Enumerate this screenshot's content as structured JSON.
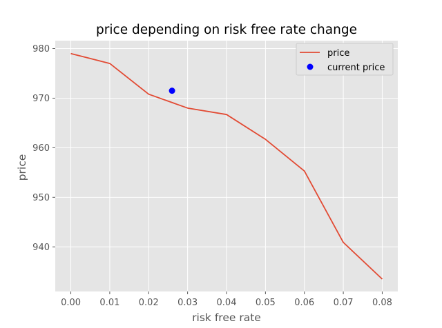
{
  "chart_data": {
    "type": "line",
    "title": "price depending on risk free rate change",
    "xlabel": "risk free rate",
    "ylabel": "price",
    "xlim": [
      -0.004,
      0.084
    ],
    "ylim": [
      931.0,
      981.6
    ],
    "xticks": [
      0.0,
      0.01,
      0.02,
      0.03,
      0.04,
      0.05,
      0.06,
      0.07,
      0.08
    ],
    "xtick_labels": [
      "0.00",
      "0.01",
      "0.02",
      "0.03",
      "0.04",
      "0.05",
      "0.06",
      "0.07",
      "0.08"
    ],
    "yticks": [
      940,
      950,
      960,
      970,
      980
    ],
    "ytick_labels": [
      "940",
      "950",
      "960",
      "970",
      "980"
    ],
    "grid": true,
    "legend_position": "top-right",
    "series": [
      {
        "name": "price",
        "kind": "line",
        "color": "#E24A33",
        "x": [
          0.0,
          0.01,
          0.02,
          0.03,
          0.04,
          0.05,
          0.06,
          0.07,
          0.08
        ],
        "y": [
          979.0,
          977.0,
          970.8,
          968.0,
          966.7,
          961.7,
          955.3,
          940.9,
          933.5
        ]
      },
      {
        "name": "current price",
        "kind": "scatter",
        "color": "#0000FF",
        "x": [
          0.026
        ],
        "y": [
          971.5
        ]
      }
    ],
    "style": {
      "plot_background": "#E5E5E5",
      "grid_color": "#FFFFFF"
    }
  }
}
